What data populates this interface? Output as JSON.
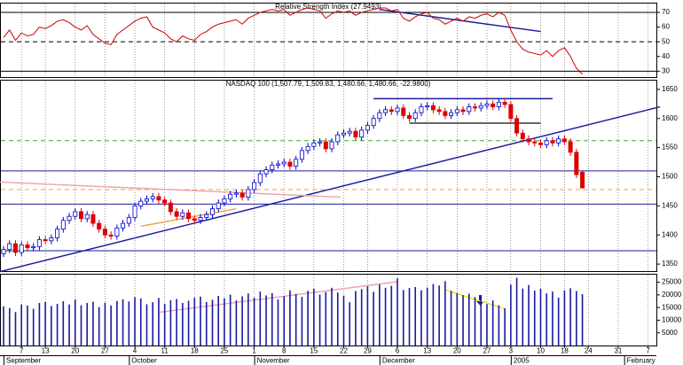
{
  "chart_data": [
    {
      "type": "line",
      "title": "Relative Strength Index (27.9493)",
      "color": "#cc0000",
      "values": [
        53,
        58,
        51,
        56,
        54,
        55,
        60,
        59,
        61,
        64,
        65,
        63,
        60,
        58,
        61,
        55,
        52,
        49,
        48,
        55,
        58,
        61,
        64,
        66,
        67,
        60,
        58,
        56,
        52,
        50,
        54,
        52,
        51,
        55,
        57,
        60,
        62,
        63,
        64,
        65,
        62,
        66,
        68,
        70,
        71,
        72,
        71,
        72,
        68,
        70,
        72,
        73,
        72,
        71,
        66,
        69,
        71,
        70,
        71,
        68,
        70,
        71,
        72,
        73,
        73,
        71,
        72,
        66,
        64,
        67,
        69,
        70,
        66,
        65,
        62,
        64,
        66,
        64,
        67,
        66,
        68,
        69,
        67,
        70,
        68,
        58,
        50,
        45,
        43,
        42,
        41,
        44,
        40,
        44,
        46,
        40,
        32,
        27.9493
      ],
      "xlim": [
        -0.6,
        109.4
      ],
      "ylim": [
        26,
        76
      ],
      "yticks": [
        70,
        60,
        50,
        40,
        30
      ],
      "hlines": [
        {
          "value": 70,
          "color": "#000000",
          "dash": false
        },
        {
          "value": 50,
          "color": "#000000",
          "dash": true
        },
        {
          "value": 30,
          "color": "#000000",
          "dash": false
        }
      ],
      "trendlines": [
        {
          "x": [
            63,
            90
          ],
          "y": [
            72,
            57
          ],
          "color": "#1a1aa0"
        }
      ]
    },
    {
      "type": "candlestick",
      "title": "NASDAQ 100 (1,507.79, 1,509.83, 1,480.66, 1,480.66, -22.9800)",
      "up_color": "#0000cc",
      "down_color": "#dd0000",
      "open": [
        1368,
        1375,
        1385,
        1370,
        1383,
        1378,
        1380,
        1392,
        1390,
        1395,
        1410,
        1425,
        1432,
        1440,
        1428,
        1435,
        1420,
        1410,
        1400,
        1398,
        1412,
        1420,
        1430,
        1450,
        1458,
        1462,
        1466,
        1460,
        1455,
        1440,
        1432,
        1438,
        1428,
        1425,
        1430,
        1435,
        1445,
        1455,
        1462,
        1470,
        1472,
        1465,
        1478,
        1490,
        1505,
        1512,
        1520,
        1522,
        1525,
        1518,
        1530,
        1545,
        1552,
        1558,
        1560,
        1548,
        1560,
        1572,
        1575,
        1578,
        1568,
        1580,
        1588,
        1600,
        1610,
        1615,
        1612,
        1618,
        1605,
        1600,
        1610,
        1620,
        1622,
        1615,
        1612,
        1605,
        1610,
        1615,
        1612,
        1620,
        1618,
        1622,
        1625,
        1620,
        1628,
        1624,
        1600,
        1575,
        1565,
        1560,
        1558,
        1555,
        1562,
        1558,
        1565,
        1560,
        1542,
        1507.79
      ],
      "high": [
        1381,
        1391,
        1391,
        1389,
        1389,
        1386,
        1398,
        1398,
        1401,
        1416,
        1431,
        1438,
        1446,
        1446,
        1441,
        1441,
        1426,
        1416,
        1406,
        1418,
        1426,
        1436,
        1456,
        1464,
        1468,
        1472,
        1472,
        1466,
        1461,
        1446,
        1444,
        1444,
        1434,
        1436,
        1441,
        1451,
        1461,
        1468,
        1476,
        1478,
        1478,
        1484,
        1496,
        1511,
        1518,
        1526,
        1528,
        1531,
        1531,
        1536,
        1551,
        1558,
        1564,
        1566,
        1566,
        1566,
        1578,
        1581,
        1584,
        1584,
        1586,
        1594,
        1606,
        1616,
        1621,
        1621,
        1624,
        1624,
        1611,
        1616,
        1626,
        1628,
        1628,
        1621,
        1618,
        1616,
        1621,
        1621,
        1626,
        1626,
        1628,
        1631,
        1631,
        1634,
        1634,
        1630,
        1606,
        1581,
        1571,
        1566,
        1564,
        1568,
        1568,
        1571,
        1571,
        1566,
        1548,
        1509.83
      ],
      "low": [
        1362,
        1369,
        1364,
        1364,
        1372,
        1372,
        1374,
        1384,
        1384,
        1389,
        1404,
        1419,
        1426,
        1422,
        1422,
        1414,
        1404,
        1394,
        1392,
        1392,
        1406,
        1414,
        1424,
        1444,
        1452,
        1456,
        1454,
        1449,
        1434,
        1426,
        1426,
        1422,
        1419,
        1419,
        1424,
        1429,
        1439,
        1449,
        1456,
        1464,
        1459,
        1459,
        1472,
        1484,
        1499,
        1506,
        1514,
        1516,
        1512,
        1512,
        1524,
        1539,
        1546,
        1552,
        1542,
        1542,
        1554,
        1566,
        1569,
        1562,
        1562,
        1574,
        1582,
        1594,
        1604,
        1606,
        1606,
        1599,
        1594,
        1594,
        1604,
        1614,
        1609,
        1606,
        1599,
        1599,
        1604,
        1606,
        1606,
        1612,
        1612,
        1616,
        1614,
        1614,
        1618,
        1594,
        1569,
        1559,
        1554,
        1552,
        1549,
        1549,
        1552,
        1552,
        1554,
        1536,
        1497.64,
        1480.66
      ],
      "close": [
        1375,
        1385,
        1370,
        1383,
        1378,
        1380,
        1392,
        1390,
        1395,
        1410,
        1425,
        1432,
        1440,
        1428,
        1435,
        1420,
        1410,
        1400,
        1398,
        1412,
        1420,
        1430,
        1450,
        1458,
        1462,
        1466,
        1460,
        1455,
        1440,
        1432,
        1438,
        1428,
        1425,
        1430,
        1435,
        1445,
        1455,
        1462,
        1470,
        1472,
        1465,
        1478,
        1490,
        1505,
        1512,
        1520,
        1522,
        1525,
        1518,
        1530,
        1545,
        1552,
        1558,
        1560,
        1548,
        1560,
        1572,
        1575,
        1578,
        1568,
        1580,
        1588,
        1600,
        1610,
        1615,
        1612,
        1618,
        1605,
        1600,
        1610,
        1620,
        1622,
        1615,
        1612,
        1605,
        1610,
        1615,
        1612,
        1620,
        1618,
        1622,
        1625,
        1620,
        1628,
        1624,
        1600,
        1575,
        1565,
        1560,
        1558,
        1555,
        1562,
        1558,
        1565,
        1560,
        1542,
        1503.64,
        1480.66
      ],
      "xlim": [
        -0.6,
        109.4
      ],
      "ylim": [
        1338,
        1665
      ],
      "yticks": [
        1650,
        1600,
        1550,
        1500,
        1450,
        1400,
        1350
      ],
      "hlines": [
        {
          "value": 1510,
          "color": "#1a1aa0",
          "dash": false
        },
        {
          "value": 1453,
          "color": "#1a1aa0",
          "dash": false
        },
        {
          "value": 1373,
          "color": "#1a1aa0",
          "dash": false
        },
        {
          "value": 1562,
          "color": "#2fb52f",
          "dash": true
        },
        {
          "value": 1478,
          "color": "#f0a050",
          "dash": true
        }
      ],
      "trendlines": [
        {
          "x": [
            -1,
            110
          ],
          "y": [
            1336,
            1620
          ],
          "color": "#1a1aa0"
        },
        {
          "x": [
            62,
            92
          ],
          "y": [
            1634,
            1634
          ],
          "color": "#1a1aa0"
        },
        {
          "x": [
            68,
            90
          ],
          "y": [
            1592,
            1592
          ],
          "color": "#333333"
        },
        {
          "x": [
            -1,
            56.5
          ],
          "y": [
            1491,
            1465
          ],
          "color": "#f0a0b0"
        },
        {
          "x": [
            23,
            39
          ],
          "y": [
            1415,
            1445
          ],
          "color": "#f0a050"
        }
      ]
    },
    {
      "type": "bar",
      "color": "#1a1aa0",
      "values": [
        15500,
        14800,
        13200,
        16200,
        15800,
        14500,
        16800,
        17200,
        15600,
        16400,
        17500,
        16200,
        18100,
        15900,
        16800,
        17300,
        15200,
        16900,
        15800,
        17600,
        18200,
        17400,
        19100,
        18600,
        16300,
        17100,
        18800,
        16500,
        17900,
        18400,
        16800,
        17700,
        18900,
        19300,
        17200,
        18100,
        19600,
        18700,
        20100,
        17800,
        19400,
        20600,
        18900,
        21300,
        19800,
        20700,
        18200,
        19500,
        21800,
        20400,
        19200,
        21600,
        22400,
        20100,
        21100,
        22800,
        20900,
        19700,
        17100,
        21500,
        22300,
        23400,
        21200,
        24100,
        22800,
        23600,
        26500,
        21900,
        22700,
        23100,
        21800,
        22900,
        24300,
        23700,
        25400,
        21600,
        20800,
        19900,
        20500,
        19100,
        18700,
        16400,
        17800,
        15900,
        14700,
        24100,
        26800,
        22500,
        23900,
        21700,
        22400,
        20600,
        21300,
        18900,
        21800,
        22600,
        21500,
        20300
      ],
      "xlim": [
        -0.6,
        109.4
      ],
      "ylim": [
        0,
        28000
      ],
      "yticks": [
        25000,
        20000,
        15000,
        10000,
        5000
      ],
      "trendlines": [
        {
          "x": [
            26,
            66
          ],
          "y": [
            13100,
            25200
          ],
          "color": "#f0a0b0"
        },
        {
          "x": [
            74,
            84
          ],
          "y": [
            22000,
            14500
          ],
          "color": "#f0e020"
        }
      ],
      "xticks": [
        {
          "value": 3,
          "label": "7"
        },
        {
          "value": 7,
          "label": "13"
        },
        {
          "value": 12,
          "label": "20"
        },
        {
          "value": 17,
          "label": "27"
        },
        {
          "value": 22,
          "label": "4"
        },
        {
          "value": 27,
          "label": "11"
        },
        {
          "value": 32,
          "label": "18"
        },
        {
          "value": 37,
          "label": "25"
        },
        {
          "value": 42,
          "label": "1"
        },
        {
          "value": 47,
          "label": "8"
        },
        {
          "value": 52,
          "label": "15"
        },
        {
          "value": 57,
          "label": "22"
        },
        {
          "value": 61,
          "label": "29"
        },
        {
          "value": 66,
          "label": "6"
        },
        {
          "value": 71,
          "label": "13"
        },
        {
          "value": 76,
          "label": "20"
        },
        {
          "value": 81,
          "label": "27"
        },
        {
          "value": 85,
          "label": "3"
        },
        {
          "value": 90,
          "label": "10"
        },
        {
          "value": 94,
          "label": "18"
        },
        {
          "value": 98,
          "label": "24"
        },
        {
          "value": 103,
          "label": "31"
        },
        {
          "value": 108,
          "label": "7"
        }
      ],
      "xlabels_major": [
        {
          "value": 0,
          "label": "September"
        },
        {
          "value": 21,
          "label": "October"
        },
        {
          "value": 42,
          "label": "November"
        },
        {
          "value": 63,
          "label": "December"
        },
        {
          "value": 85,
          "label": "2005"
        },
        {
          "value": 104,
          "label": "February"
        }
      ]
    }
  ]
}
